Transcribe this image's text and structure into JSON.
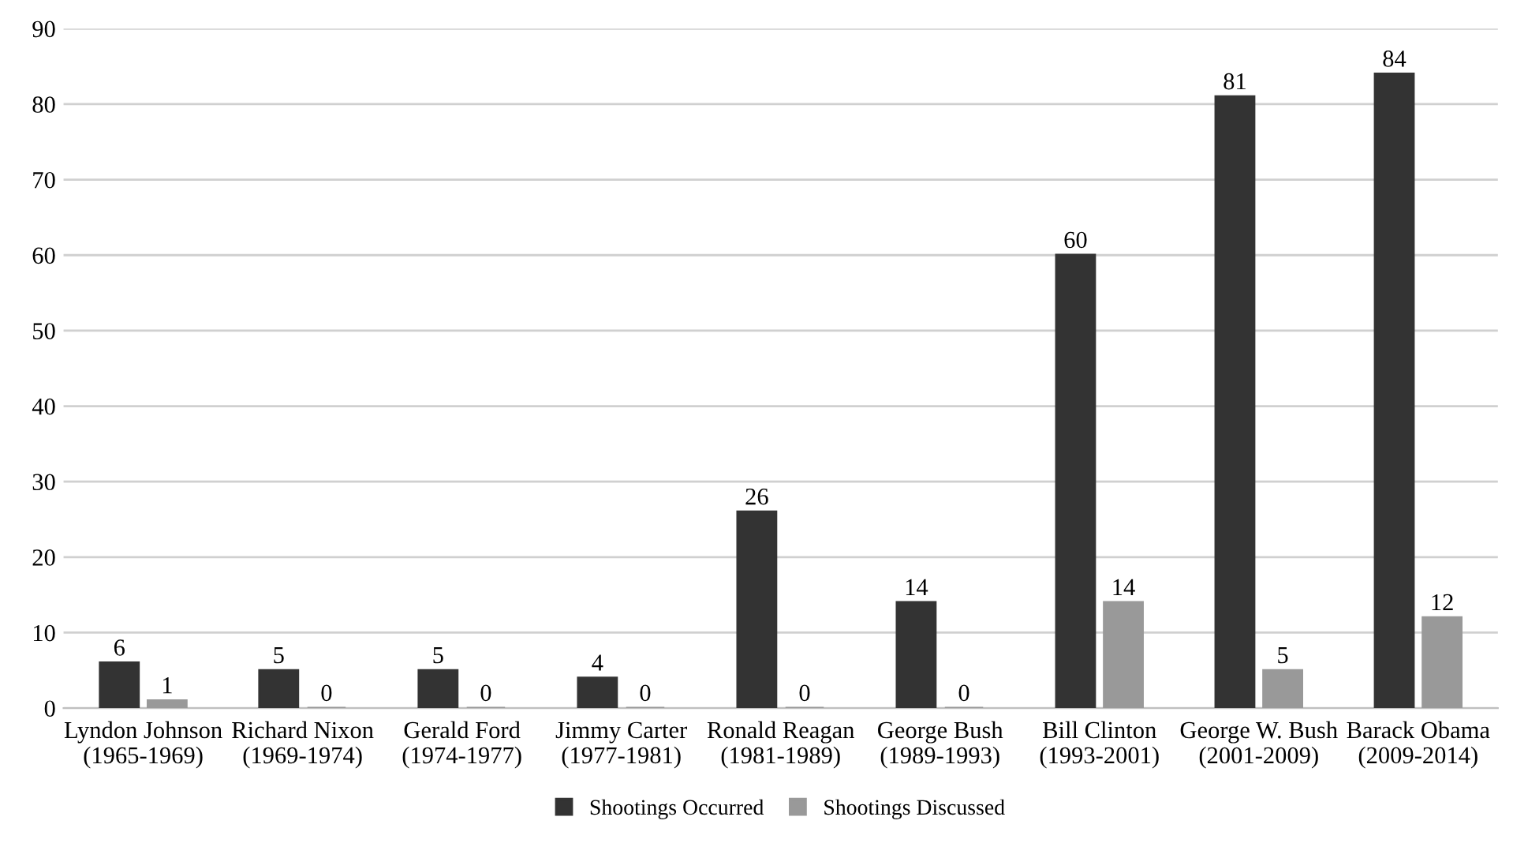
{
  "chart_data": {
    "type": "bar",
    "categories": [
      "Lyndon Johnson\n(1965-1969)",
      "Richard Nixon\n(1969-1974)",
      "Gerald Ford\n(1974-1977)",
      "Jimmy Carter\n(1977-1981)",
      "Ronald Reagan\n(1981-1989)",
      "George Bush\n(1989-1993)",
      "Bill Clinton\n(1993-2001)",
      "George W. Bush\n(2001-2009)",
      "Barack Obama\n(2009-2014)"
    ],
    "series": [
      {
        "name": "Shootings Occurred",
        "color": "#333333",
        "values": [
          6,
          5,
          5,
          4,
          26,
          14,
          60,
          81,
          84
        ]
      },
      {
        "name": "Shootings Discussed",
        "color": "#999999",
        "values": [
          1,
          0,
          0,
          0,
          0,
          0,
          14,
          5,
          12
        ]
      }
    ],
    "ylim": [
      0,
      90
    ],
    "yticks": [
      0,
      10,
      20,
      30,
      40,
      50,
      60,
      70,
      80,
      90
    ],
    "grid": "y",
    "legend": "bottom",
    "data_labels": true
  }
}
